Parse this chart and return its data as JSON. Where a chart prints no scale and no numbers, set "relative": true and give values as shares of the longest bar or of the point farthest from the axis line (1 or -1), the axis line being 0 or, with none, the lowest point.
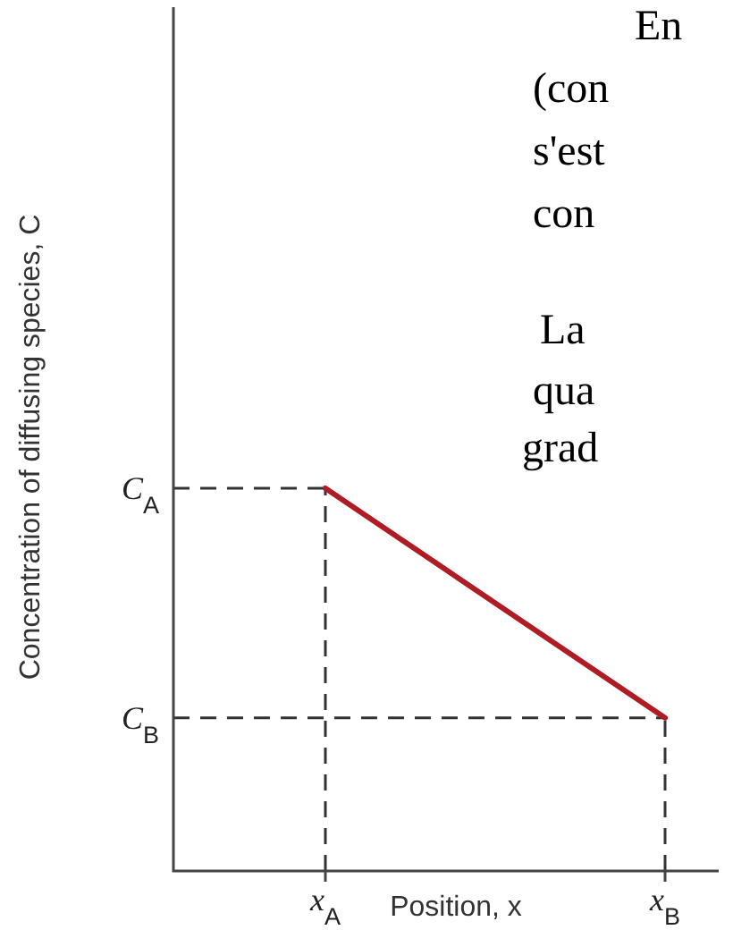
{
  "chart_data": {
    "type": "line",
    "relative": true,
    "xlabel": "Position, x",
    "ylabel": "Concentration of diffusing species, C",
    "categories": [
      "x$_{A}$",
      "x$_{B}$"
    ],
    "series": [
      {
        "color": "#b01c24",
        "values": [
          1,
          0.4
        ]
      }
    ],
    "marker": "none",
    "line_style": "solid",
    "ref_lines": [
      {
        "axis": "y",
        "value": 1,
        "label": "C$_{A}$",
        "line_style": "dashed",
        "color": "#333333"
      },
      {
        "axis": "y",
        "value": 0.4,
        "label": "C$_{B}$",
        "line_style": "dashed",
        "color": "#333333"
      },
      {
        "axis": "x",
        "value": "x$_{A}$",
        "line_style": "dashed",
        "color": "#333333"
      },
      {
        "axis": "x",
        "value": "x$_{B}$",
        "line_style": "dashed",
        "color": "#333333"
      }
    ],
    "annotations": [
      "En",
      "(con",
      "s'est",
      "con",
      "La",
      "qua",
      "grad"
    ]
  }
}
